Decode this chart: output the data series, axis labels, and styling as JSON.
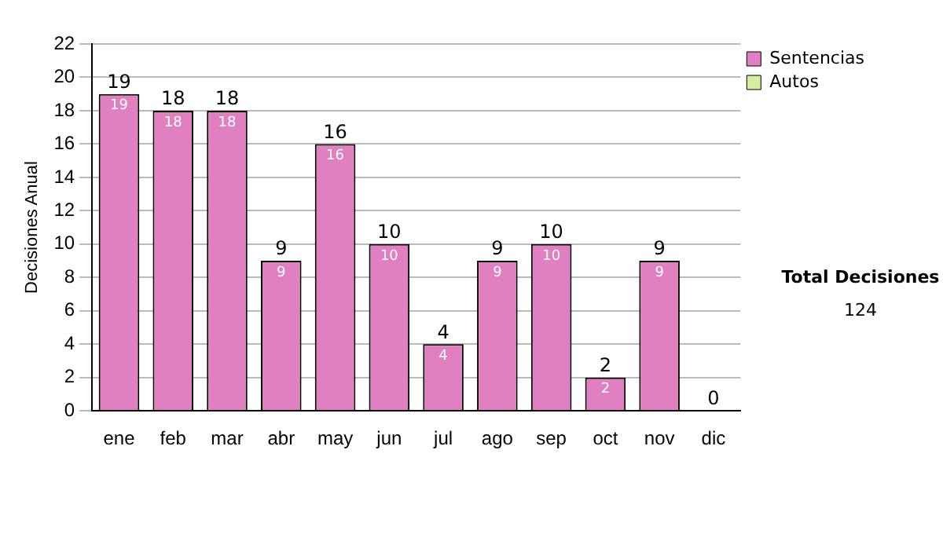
{
  "chart_data": {
    "type": "bar",
    "stacked": true,
    "ylabel": "Decisiones Anual",
    "categories": [
      "ene",
      "feb",
      "mar",
      "abr",
      "may",
      "jun",
      "jul",
      "ago",
      "sep",
      "oct",
      "nov",
      "dic"
    ],
    "series": [
      {
        "name": "Sentencias",
        "color": "#e080c0",
        "values": [
          19,
          18,
          18,
          9,
          16,
          10,
          4,
          9,
          10,
          2,
          9,
          0
        ],
        "value_labels": [
          "19",
          "18",
          "18",
          "9",
          "16",
          "10",
          "4",
          "9",
          "10",
          "2",
          "9",
          null
        ]
      },
      {
        "name": "Autos",
        "color": "#d8eca0",
        "values": [
          0,
          0,
          0,
          0,
          0,
          0,
          0,
          0,
          0,
          0,
          0,
          0
        ]
      }
    ],
    "totals": [
      "19",
      "18",
      "18",
      "9",
      "16",
      "10",
      "4",
      "9",
      "10",
      "2",
      "9",
      "0"
    ],
    "ylim": [
      0,
      22
    ],
    "yticks": [
      0,
      2,
      4,
      6,
      8,
      10,
      12,
      14,
      16,
      18,
      20,
      22
    ],
    "grid": "y",
    "legend": "right",
    "annotations": [
      "Total Decisiones",
      "124"
    ]
  }
}
